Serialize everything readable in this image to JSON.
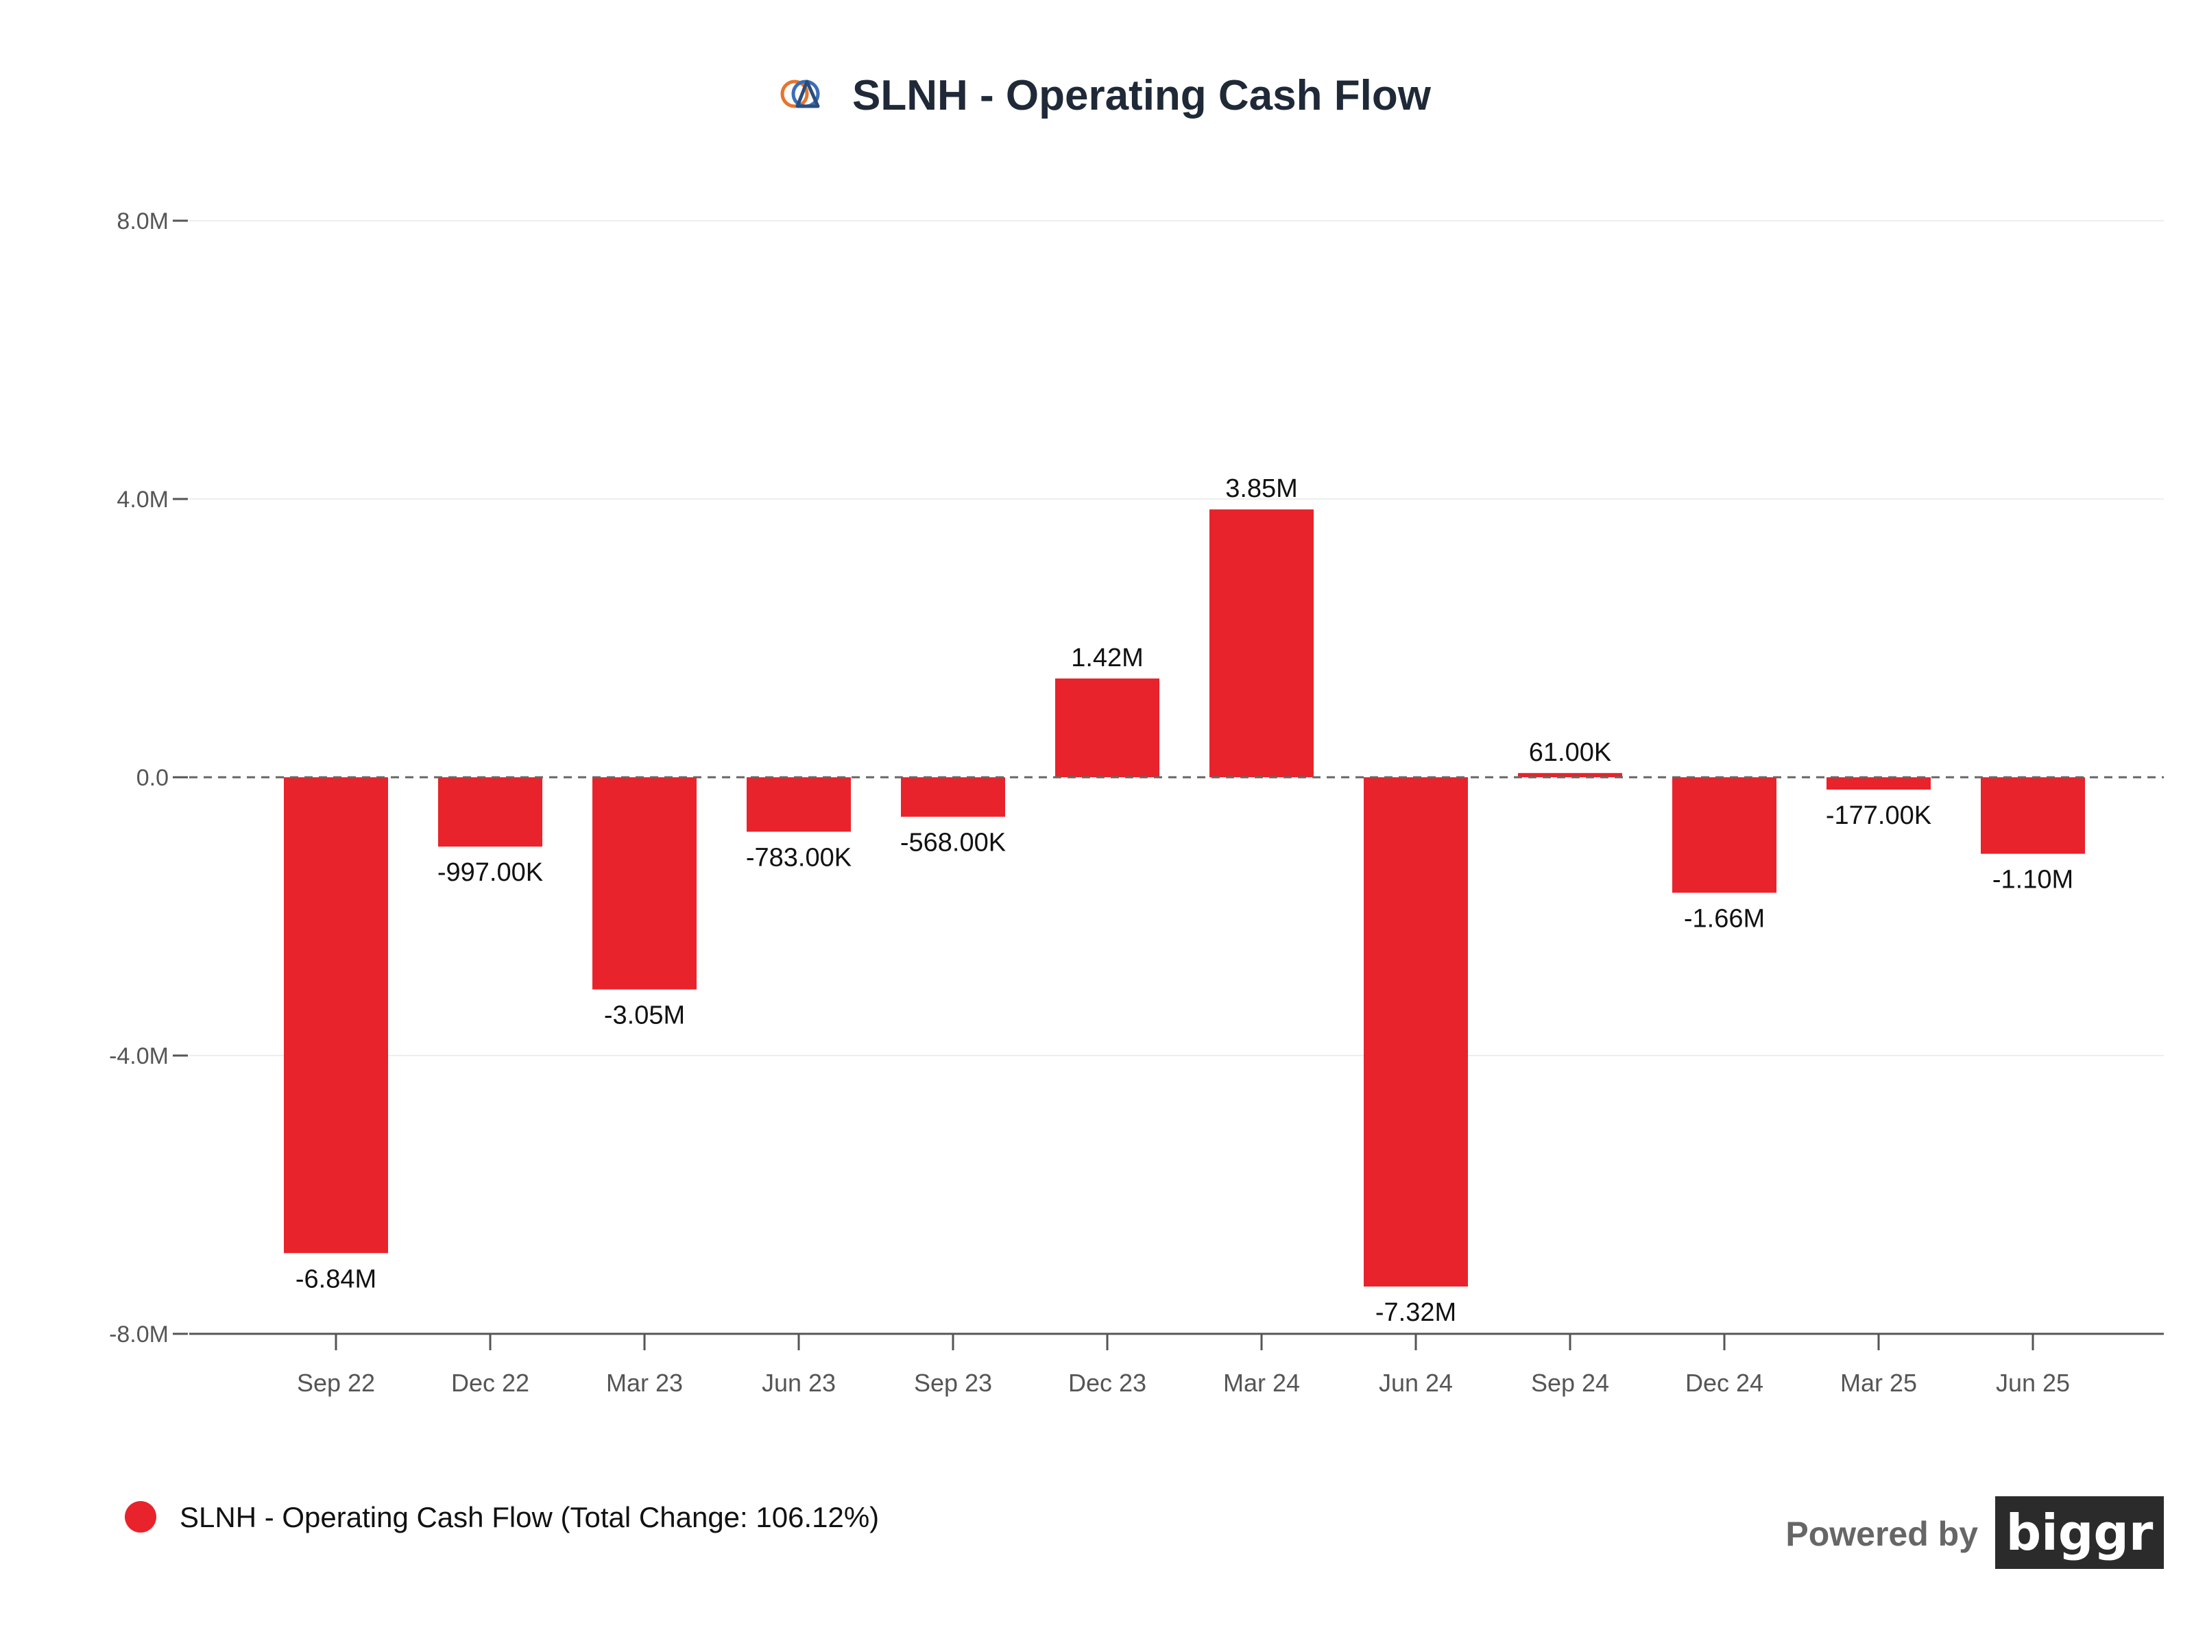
{
  "header": {
    "title": "SLNH - Operating Cash Flow",
    "logo_icon": "overlapping-circle-triangle-logo"
  },
  "colors": {
    "bar": "#e8232b",
    "grid": "#eeeeee",
    "axis": "#555555",
    "zero_line": "#666666",
    "brand_bg": "#2b2b2b"
  },
  "chart_data": {
    "type": "bar",
    "title": "SLNH - Operating Cash Flow",
    "xlabel": "",
    "ylabel": "",
    "categories": [
      "Sep 22",
      "Dec 22",
      "Mar 23",
      "Jun 23",
      "Sep 23",
      "Dec 23",
      "Mar 24",
      "Jun 24",
      "Sep 24",
      "Dec 24",
      "Mar 25",
      "Jun 25"
    ],
    "series": [
      {
        "name": "SLNH - Operating Cash Flow",
        "values": [
          -6840000,
          -997000,
          -3050000,
          -783000,
          -568000,
          1420000,
          3850000,
          -7320000,
          61000,
          -1660000,
          -177000,
          -1100000
        ],
        "labels": [
          "-6.84M",
          "-997.00K",
          "-3.05M",
          "-783.00K",
          "-568.00K",
          "1.42M",
          "3.85M",
          "-7.32M",
          "61.00K",
          "-1.66M",
          "-177.00K",
          "-1.10M"
        ]
      }
    ],
    "ylim": [
      -8000000,
      8000000
    ],
    "yticks": [
      8000000,
      4000000,
      0,
      -4000000,
      -8000000
    ],
    "ytick_labels": [
      "8.0M",
      "4.0M",
      "0.0",
      "-4.0M",
      "-8.0M"
    ],
    "grid": true,
    "zero_line": "dashed",
    "legend_position": "bottom-left"
  },
  "legend": {
    "label": "SLNH - Operating Cash Flow (Total Change: 106.12%)"
  },
  "branding": {
    "powered_by": "Powered by",
    "brand": "biggr"
  }
}
